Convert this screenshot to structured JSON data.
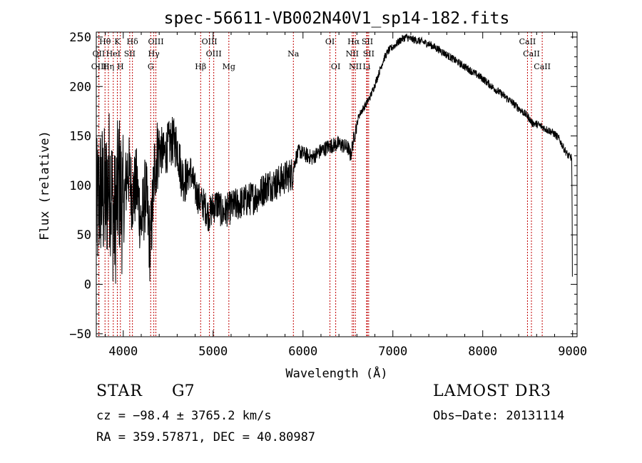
{
  "chart_data": {
    "type": "line",
    "title": "spec-56611-VB002N40V1_sp14-182.fits",
    "xlabel": "Wavelength (Å)",
    "ylabel": "Flux (relative)",
    "xlim": [
      3700,
      9050
    ],
    "ylim": [
      -53,
      255
    ],
    "xticks": [
      4000,
      5000,
      6000,
      7000,
      8000,
      9000
    ],
    "xtick_labels": [
      "4000",
      "5000",
      "6000",
      "7000",
      "8000",
      "9000"
    ],
    "yticks": [
      -50,
      0,
      50,
      100,
      150,
      200,
      250
    ],
    "ytick_labels": [
      "−50",
      "0",
      "50",
      "100",
      "150",
      "200",
      "250"
    ],
    "series": [
      {
        "name": "flux",
        "x": [
          3700,
          3750,
          3800,
          3850,
          3900,
          3950,
          4000,
          4050,
          4100,
          4150,
          4200,
          4250,
          4300,
          4350,
          4400,
          4450,
          4500,
          4550,
          4600,
          4650,
          4700,
          4750,
          4800,
          4850,
          4900,
          4950,
          5000,
          5050,
          5100,
          5150,
          5200,
          5300,
          5400,
          5500,
          5600,
          5700,
          5800,
          5880,
          5920,
          5960,
          6000,
          6100,
          6200,
          6300,
          6400,
          6500,
          6530,
          6560,
          6590,
          6620,
          6650,
          6700,
          6750,
          6800,
          6850,
          6900,
          6950,
          7000,
          7050,
          7100,
          7150,
          7200,
          7250,
          7300,
          7400,
          7500,
          7600,
          7700,
          7800,
          7900,
          8000,
          8100,
          8200,
          8300,
          8400,
          8500,
          8550,
          8600,
          8650,
          8700,
          8750,
          8800,
          8850,
          8900,
          8950,
          8990,
          9000
        ],
        "values": [
          70,
          95,
          85,
          110,
          60,
          105,
          75,
          120,
          90,
          100,
          60,
          95,
          35,
          120,
          140,
          130,
          140,
          145,
          140,
          110,
          105,
          115,
          95,
          85,
          80,
          70,
          78,
          82,
          72,
          75,
          78,
          82,
          86,
          90,
          100,
          102,
          108,
          112,
          128,
          135,
          132,
          128,
          135,
          140,
          142,
          138,
          130,
          145,
          158,
          170,
          175,
          182,
          190,
          202,
          215,
          228,
          236,
          240,
          244,
          248,
          250,
          248,
          247,
          246,
          243,
          238,
          232,
          226,
          220,
          214,
          208,
          200,
          193,
          186,
          178,
          170,
          163,
          162,
          160,
          157,
          155,
          152,
          147,
          138,
          130,
          128,
          8
        ]
      }
    ],
    "lines": [
      {
        "label": "Hθ",
        "x": 3797
      },
      {
        "label": "OII",
        "x": 3727
      },
      {
        "label": "OIII",
        "x": 3730
      },
      {
        "label": "K",
        "x": 3934
      },
      {
        "label": "HeI",
        "x": 3889
      },
      {
        "label": "Hη",
        "x": 3835
      },
      {
        "label": "H",
        "x": 3968
      },
      {
        "label": "SII",
        "x": 4072
      },
      {
        "label": "Hδ",
        "x": 4102
      },
      {
        "label": "OIII",
        "x": 4363
      },
      {
        "label": "Hγ",
        "x": 4340
      },
      {
        "label": "G",
        "x": 4305
      },
      {
        "label": "Hβ",
        "x": 4861
      },
      {
        "label": "OIII",
        "x": 4959
      },
      {
        "label": "OIII",
        "x": 5007
      },
      {
        "label": "Mg",
        "x": 5175
      },
      {
        "label": "Na",
        "x": 5893
      },
      {
        "label": "OI",
        "x": 6300
      },
      {
        "label": "OI",
        "x": 6364
      },
      {
        "label": "Hα",
        "x": 6563
      },
      {
        "label": "NII",
        "x": 6548
      },
      {
        "label": "NII",
        "x": 6583
      },
      {
        "label": "SII",
        "x": 6716
      },
      {
        "label": "SII",
        "x": 6731
      },
      {
        "label": "Li",
        "x": 6708
      },
      {
        "label": "CaII",
        "x": 8498
      },
      {
        "label": "CaII",
        "x": 8542
      },
      {
        "label": "CaII",
        "x": 8662
      }
    ]
  },
  "footer": {
    "object_type": "STAR",
    "subclass": "G7",
    "survey": "LAMOST DR3",
    "cz": "cz = −98.4 ± 3765.2 km/s",
    "obs_date": "Obs−Date: 20131114",
    "coords": "RA = 359.57871, DEC =  40.80987"
  }
}
